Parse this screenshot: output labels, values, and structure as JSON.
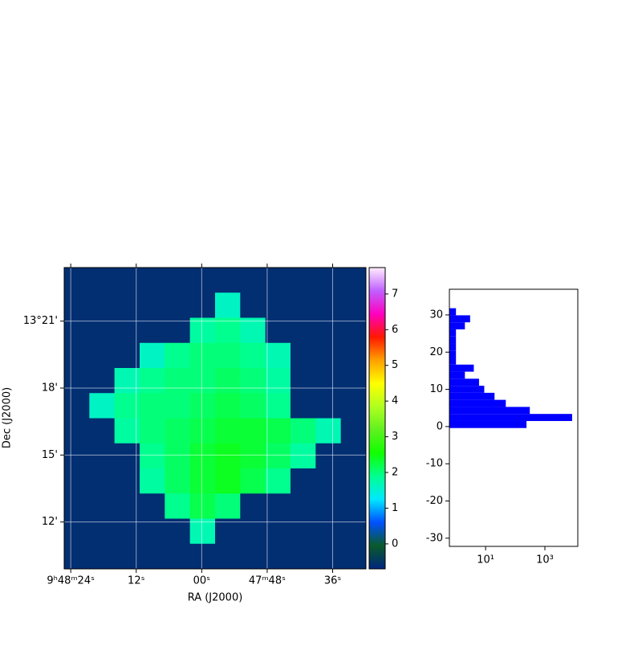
{
  "chart_data": [
    {
      "type": "image",
      "xlabel": "RA (J2000)",
      "ylabel": "Dec (J2000)",
      "xlim": [
        85.2,
        29.9
      ],
      "ylim": [
        9.9,
        23.4
      ],
      "xticks": [
        {
          "value": 84,
          "label": "9ʰ48ᵐ24ˢ"
        },
        {
          "value": 72,
          "label": "12ˢ"
        },
        {
          "value": 60,
          "label": "00ˢ"
        },
        {
          "value": 48,
          "label": "47ᵐ48ˢ"
        },
        {
          "value": 36,
          "label": "36ˢ"
        }
      ],
      "yticks": [
        {
          "value": 21,
          "label": "13°21'"
        },
        {
          "value": 18,
          "label": "18'"
        },
        {
          "value": 15,
          "label": "15'"
        },
        {
          "value": 12,
          "label": "12'"
        }
      ],
      "grid": true,
      "clim": [
        -0.7,
        7.74
      ],
      "colorbar_ticks": [
        0,
        1,
        2,
        3,
        4,
        5,
        6,
        7
      ],
      "cmap": [
        "#00267f",
        "#0a5a2a",
        "#0050ff",
        "#00e8ff",
        "#00ff90",
        "#10ff00",
        "#60f020",
        "#b0ff20",
        "#ffff00",
        "#ffa000",
        "#ff1800",
        "#ff00c0",
        "#c060ff",
        "#ffeeff"
      ],
      "z": [
        [
          -0.6,
          -0.6,
          -0.6,
          -0.6,
          -0.6,
          -0.6,
          -0.6,
          -0.6,
          -0.6,
          -0.6,
          -0.6,
          -0.6
        ],
        [
          -0.6,
          -0.6,
          -0.6,
          -0.6,
          -0.6,
          -0.6,
          1.6,
          -0.6,
          -0.6,
          -0.6,
          -0.6,
          -0.6
        ],
        [
          -0.6,
          -0.6,
          -0.6,
          -0.6,
          -0.6,
          1.8,
          1.9,
          1.7,
          -0.6,
          -0.6,
          -0.6,
          -0.6
        ],
        [
          -0.6,
          -0.6,
          -0.6,
          1.6,
          1.9,
          2.0,
          2.0,
          1.9,
          1.7,
          -0.6,
          -0.6,
          -0.6
        ],
        [
          -0.6,
          -0.6,
          1.7,
          1.9,
          2.0,
          2.0,
          2.1,
          2.0,
          1.8,
          -0.6,
          -0.6,
          -0.6
        ],
        [
          -0.6,
          1.6,
          1.9,
          2.0,
          2.0,
          2.1,
          2.2,
          2.1,
          1.9,
          -0.6,
          -0.6,
          -0.6
        ],
        [
          -0.6,
          -0.6,
          1.8,
          2.0,
          2.1,
          2.2,
          2.3,
          2.3,
          2.2,
          2.0,
          1.7,
          -0.6
        ],
        [
          -0.6,
          -0.6,
          -0.6,
          1.9,
          2.1,
          2.3,
          2.4,
          2.3,
          2.1,
          1.8,
          -0.6,
          -0.6
        ],
        [
          -0.6,
          -0.6,
          -0.6,
          1.8,
          2.1,
          2.3,
          2.4,
          2.2,
          1.9,
          -0.6,
          -0.6,
          -0.6
        ],
        [
          -0.6,
          -0.6,
          -0.6,
          -0.6,
          1.9,
          2.2,
          2.0,
          -0.6,
          -0.6,
          -0.6,
          -0.6,
          -0.6
        ],
        [
          -0.6,
          -0.6,
          -0.6,
          -0.6,
          -0.6,
          1.7,
          -0.6,
          -0.6,
          -0.6,
          -0.6,
          -0.6,
          -0.6
        ],
        [
          -0.6,
          -0.6,
          -0.6,
          -0.6,
          -0.6,
          -0.6,
          -0.6,
          -0.6,
          -0.6,
          -0.6,
          -0.6,
          -0.6
        ]
      ]
    },
    {
      "type": "hist",
      "orientation": "horizontal",
      "xscale": "log",
      "color": "#0000ff",
      "xlim": [
        0.6,
        12900
      ],
      "ylim": [
        -32.2,
        36.9
      ],
      "xticks": [
        {
          "value": 10,
          "label": "10¹"
        },
        {
          "value": 1000,
          "label": "10³"
        }
      ],
      "yticks": [
        -30,
        -20,
        -10,
        0,
        10,
        20,
        30
      ],
      "bins": [
        -0.4,
        1.49,
        3.39,
        5.28,
        7.18,
        9.07,
        10.96,
        12.86,
        14.75,
        16.65,
        18.54,
        20.43,
        22.33,
        24.22,
        26.12,
        28.01,
        29.9,
        31.8
      ],
      "counts": [
        240,
        8300,
        310,
        48,
        20,
        9,
        6,
        2,
        4,
        1,
        1,
        1,
        1,
        1,
        2,
        3,
        1
      ]
    }
  ]
}
